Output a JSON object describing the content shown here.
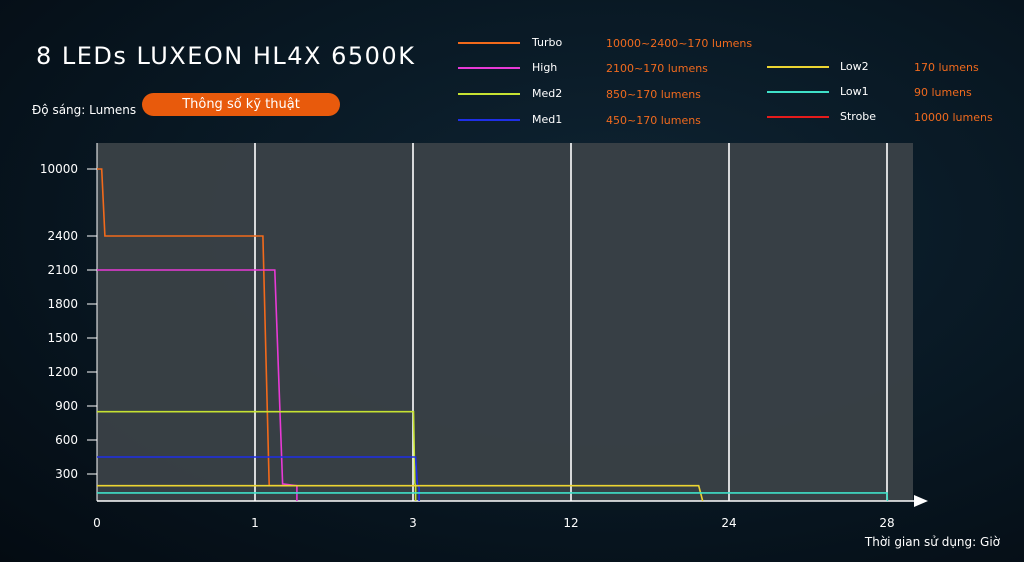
{
  "page": {
    "title": "8 LEDs LUXEON HL4X 6500K",
    "spec_button": "Thông số kỹ thuật"
  },
  "chart_data": {
    "type": "line",
    "title": "8 LEDs LUXEON HL4X 6500K",
    "ylabel": "Độ sáng: Lumens",
    "xlabel": "Thời gian sử dụng: Giờ",
    "x_ticks": [
      "0",
      "1",
      "3",
      "12",
      "24",
      "28"
    ],
    "y_ticks": [
      "10000",
      "2400",
      "2100",
      "1800",
      "1500",
      "1200",
      "900",
      "600",
      "300"
    ],
    "grid": "vertical",
    "legend_position": "top-right",
    "series": [
      {
        "name": "Turbo",
        "spec": "10000~2400~170 lumens",
        "color": "#f26a1b",
        "points": [
          [
            0,
            10000
          ],
          [
            0.03,
            10000
          ],
          [
            0.05,
            2400
          ],
          [
            1.08,
            2400
          ],
          [
            1.1,
            2400
          ],
          [
            1.18,
            170
          ],
          [
            1.35,
            170
          ]
        ]
      },
      {
        "name": "High",
        "spec": "2100~170 lumens",
        "color": "#e83ad6",
        "points": [
          [
            0,
            2100
          ],
          [
            1.25,
            2100
          ],
          [
            1.35,
            190
          ],
          [
            1.53,
            170
          ],
          [
            1.53,
            0
          ]
        ]
      },
      {
        "name": "Med2",
        "spec": "850~170 lumens",
        "color": "#c6e232",
        "points": [
          [
            0,
            850
          ],
          [
            3.03,
            850
          ],
          [
            3.1,
            200
          ],
          [
            3.15,
            170
          ],
          [
            3.15,
            0
          ]
        ]
      },
      {
        "name": "Med1",
        "spec": "450~170 lumens",
        "color": "#1f2fe6",
        "points": [
          [
            0,
            450
          ],
          [
            3.15,
            450
          ],
          [
            3.25,
            180
          ],
          [
            3.35,
            150
          ],
          [
            3.35,
            0
          ]
        ]
      },
      {
        "name": "Low2",
        "spec": "170 lumens",
        "color": "#ecd532",
        "points": [
          [
            0,
            170
          ],
          [
            21.7,
            170
          ],
          [
            22,
            0
          ]
        ]
      },
      {
        "name": "Low1",
        "spec": "90 lumens",
        "color": "#3fe0c8",
        "points": [
          [
            0,
            90
          ],
          [
            28,
            90
          ],
          [
            28.1,
            0
          ]
        ]
      },
      {
        "name": "Strobe",
        "spec": "10000 lumens",
        "color": "#e51b1b",
        "points": []
      }
    ]
  }
}
